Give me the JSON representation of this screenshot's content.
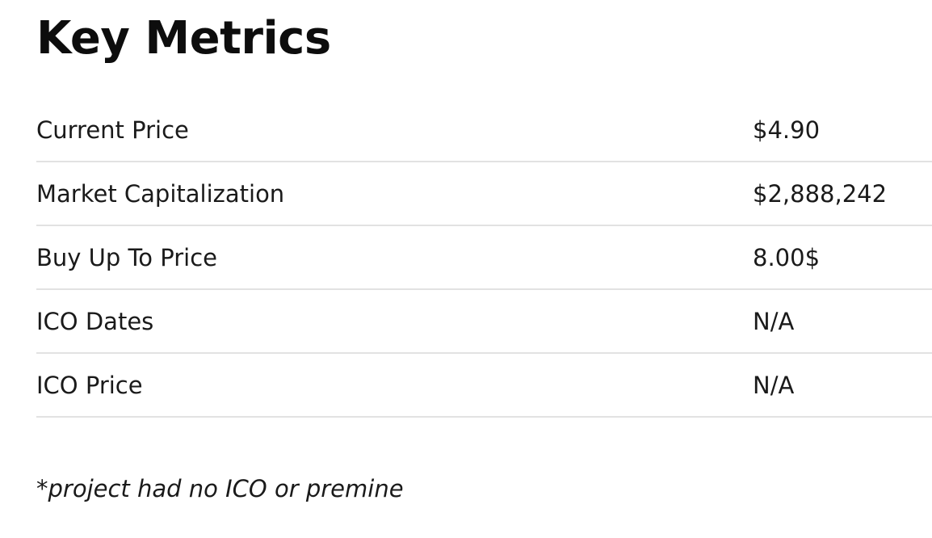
{
  "title": "Key Metrics",
  "metrics": [
    {
      "label": "Current Price",
      "value": "$4.90"
    },
    {
      "label": "Market Capitalization",
      "value": "$2,888,242"
    },
    {
      "label": "Buy Up To Price",
      "value": "8.00$"
    },
    {
      "label": "ICO Dates",
      "value": "N/A"
    },
    {
      "label": "ICO Price",
      "value": "N/A"
    }
  ],
  "footnote": "*project had no ICO or premine"
}
